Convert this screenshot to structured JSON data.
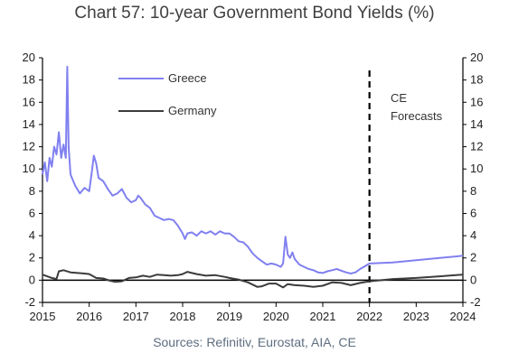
{
  "chart_data": {
    "type": "line",
    "title": "Chart 57: 10-year Government Bond Yields (%)",
    "source": "Sources: Refinitiv, Eurostat, AIA, CE",
    "xlabel": "",
    "ylabel": "",
    "xlim": [
      2015,
      2024
    ],
    "ylim": [
      -2,
      20
    ],
    "x_ticks": [
      "2015",
      "2016",
      "2017",
      "2018",
      "2019",
      "2020",
      "2021",
      "2022",
      "2023",
      "2024"
    ],
    "y_ticks": [
      "20",
      "18",
      "16",
      "14",
      "12",
      "10",
      "8",
      "6",
      "4",
      "2",
      "0",
      "-2"
    ],
    "grid": false,
    "legend_position": "top-left",
    "forecast_start": 2022,
    "annotation": [
      "CE",
      "Forecasts"
    ],
    "series": [
      {
        "name": "Greece",
        "color": "#8080f0",
        "points": [
          [
            2015.0,
            9.5
          ],
          [
            2015.05,
            10.6
          ],
          [
            2015.1,
            8.9
          ],
          [
            2015.15,
            11.0
          ],
          [
            2015.2,
            10.2
          ],
          [
            2015.25,
            12.0
          ],
          [
            2015.3,
            11.3
          ],
          [
            2015.35,
            13.3
          ],
          [
            2015.4,
            11.0
          ],
          [
            2015.45,
            12.2
          ],
          [
            2015.5,
            11.0
          ],
          [
            2015.53,
            19.2
          ],
          [
            2015.56,
            12.0
          ],
          [
            2015.6,
            9.5
          ],
          [
            2015.7,
            8.5
          ],
          [
            2015.8,
            7.8
          ],
          [
            2015.9,
            8.3
          ],
          [
            2016.0,
            8.0
          ],
          [
            2016.05,
            9.5
          ],
          [
            2016.1,
            11.2
          ],
          [
            2016.15,
            10.5
          ],
          [
            2016.2,
            9.2
          ],
          [
            2016.3,
            8.9
          ],
          [
            2016.4,
            8.2
          ],
          [
            2016.5,
            7.6
          ],
          [
            2016.6,
            7.8
          ],
          [
            2016.7,
            8.2
          ],
          [
            2016.8,
            7.4
          ],
          [
            2016.9,
            7.0
          ],
          [
            2017.0,
            7.2
          ],
          [
            2017.05,
            7.6
          ],
          [
            2017.1,
            7.4
          ],
          [
            2017.2,
            6.8
          ],
          [
            2017.3,
            6.5
          ],
          [
            2017.4,
            5.8
          ],
          [
            2017.5,
            5.6
          ],
          [
            2017.6,
            5.4
          ],
          [
            2017.7,
            5.5
          ],
          [
            2017.8,
            5.4
          ],
          [
            2017.9,
            4.9
          ],
          [
            2018.0,
            4.2
          ],
          [
            2018.05,
            3.7
          ],
          [
            2018.1,
            4.2
          ],
          [
            2018.2,
            4.3
          ],
          [
            2018.3,
            4.0
          ],
          [
            2018.4,
            4.4
          ],
          [
            2018.5,
            4.2
          ],
          [
            2018.6,
            4.4
          ],
          [
            2018.7,
            4.1
          ],
          [
            2018.8,
            4.4
          ],
          [
            2018.9,
            4.2
          ],
          [
            2019.0,
            4.2
          ],
          [
            2019.1,
            3.9
          ],
          [
            2019.2,
            3.5
          ],
          [
            2019.3,
            3.4
          ],
          [
            2019.4,
            3.0
          ],
          [
            2019.5,
            2.4
          ],
          [
            2019.6,
            2.0
          ],
          [
            2019.7,
            1.7
          ],
          [
            2019.8,
            1.4
          ],
          [
            2019.9,
            1.5
          ],
          [
            2020.0,
            1.4
          ],
          [
            2020.1,
            1.2
          ],
          [
            2020.15,
            1.5
          ],
          [
            2020.2,
            3.9
          ],
          [
            2020.25,
            2.3
          ],
          [
            2020.3,
            2.0
          ],
          [
            2020.35,
            2.5
          ],
          [
            2020.4,
            1.9
          ],
          [
            2020.5,
            1.4
          ],
          [
            2020.6,
            1.2
          ],
          [
            2020.7,
            1.0
          ],
          [
            2020.8,
            0.9
          ],
          [
            2020.9,
            0.7
          ],
          [
            2021.0,
            0.65
          ],
          [
            2021.1,
            0.8
          ],
          [
            2021.2,
            0.9
          ],
          [
            2021.3,
            1.0
          ],
          [
            2021.4,
            0.85
          ],
          [
            2021.5,
            0.7
          ],
          [
            2021.6,
            0.6
          ],
          [
            2021.7,
            0.7
          ],
          [
            2021.8,
            1.0
          ],
          [
            2021.9,
            1.25
          ],
          [
            2022.0,
            1.5
          ],
          [
            2022.5,
            1.6
          ],
          [
            2023.0,
            1.8
          ],
          [
            2023.5,
            2.0
          ],
          [
            2024.0,
            2.2
          ]
        ]
      },
      {
        "name": "Germany",
        "color": "#3c3c3c",
        "points": [
          [
            2015.0,
            0.5
          ],
          [
            2015.1,
            0.35
          ],
          [
            2015.2,
            0.2
          ],
          [
            2015.3,
            0.1
          ],
          [
            2015.35,
            0.8
          ],
          [
            2015.45,
            0.9
          ],
          [
            2015.6,
            0.7
          ],
          [
            2015.75,
            0.65
          ],
          [
            2015.9,
            0.6
          ],
          [
            2016.0,
            0.55
          ],
          [
            2016.15,
            0.2
          ],
          [
            2016.3,
            0.15
          ],
          [
            2016.45,
            -0.05
          ],
          [
            2016.55,
            -0.15
          ],
          [
            2016.7,
            -0.1
          ],
          [
            2016.85,
            0.2
          ],
          [
            2017.0,
            0.25
          ],
          [
            2017.15,
            0.4
          ],
          [
            2017.3,
            0.3
          ],
          [
            2017.45,
            0.5
          ],
          [
            2017.6,
            0.45
          ],
          [
            2017.75,
            0.4
          ],
          [
            2017.9,
            0.45
          ],
          [
            2018.0,
            0.55
          ],
          [
            2018.1,
            0.75
          ],
          [
            2018.3,
            0.55
          ],
          [
            2018.5,
            0.4
          ],
          [
            2018.7,
            0.45
          ],
          [
            2018.9,
            0.3
          ],
          [
            2019.0,
            0.2
          ],
          [
            2019.2,
            0.05
          ],
          [
            2019.4,
            -0.2
          ],
          [
            2019.6,
            -0.6
          ],
          [
            2019.7,
            -0.55
          ],
          [
            2019.85,
            -0.3
          ],
          [
            2020.0,
            -0.3
          ],
          [
            2020.15,
            -0.65
          ],
          [
            2020.25,
            -0.35
          ],
          [
            2020.4,
            -0.45
          ],
          [
            2020.6,
            -0.5
          ],
          [
            2020.8,
            -0.6
          ],
          [
            2021.0,
            -0.5
          ],
          [
            2021.2,
            -0.2
          ],
          [
            2021.4,
            -0.25
          ],
          [
            2021.6,
            -0.45
          ],
          [
            2021.8,
            -0.25
          ],
          [
            2022.0,
            -0.1
          ],
          [
            2022.5,
            0.1
          ],
          [
            2023.0,
            0.2
          ],
          [
            2023.5,
            0.35
          ],
          [
            2024.0,
            0.5
          ]
        ]
      }
    ]
  }
}
